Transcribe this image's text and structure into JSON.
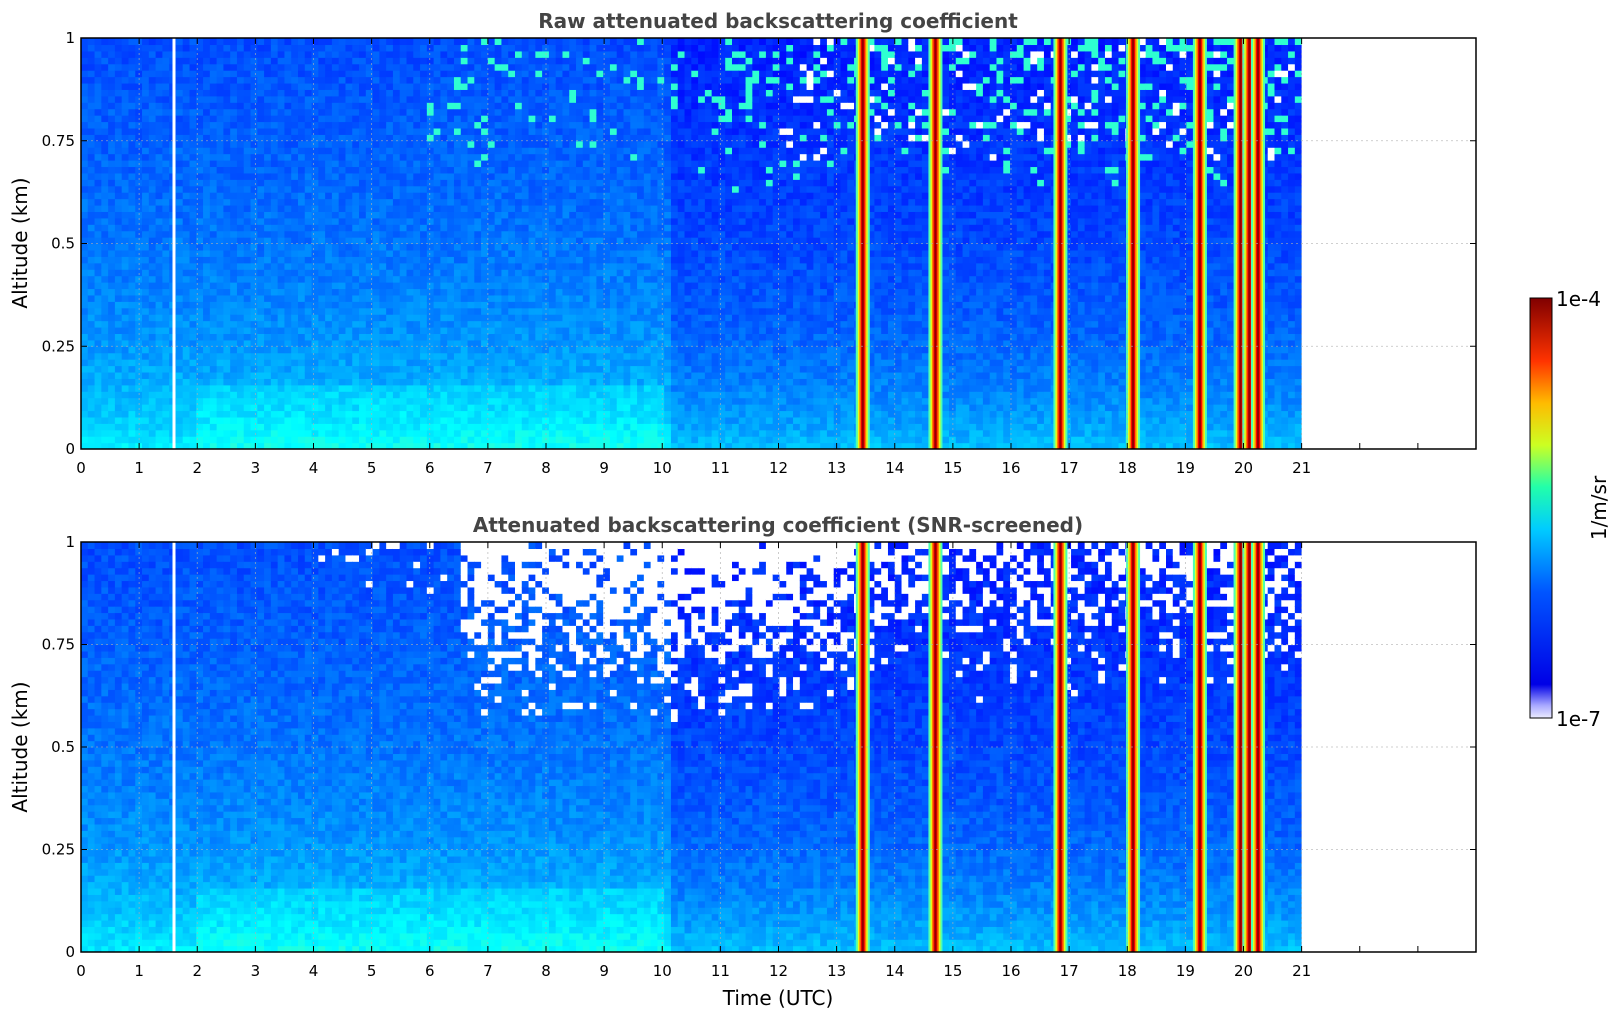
{
  "chart_data": [
    {
      "type": "heatmap",
      "title": "Raw attenuated backscattering coefficient",
      "xlabel": "",
      "ylabel": "Altitude (km)",
      "xlim": [
        0,
        24
      ],
      "ylim": [
        0,
        1
      ],
      "x_ticks": [
        "0",
        "1",
        "2",
        "3",
        "4",
        "5",
        "6",
        "7",
        "8",
        "9",
        "10",
        "11",
        "12",
        "13",
        "14",
        "15",
        "16",
        "17",
        "18",
        "19",
        "20",
        "21"
      ],
      "y_ticks": [
        "0",
        "0.25",
        "0.5",
        "0.75",
        "1"
      ],
      "grid": true,
      "data_end_hour": 21,
      "gap_hours": [
        1.6
      ],
      "screened": false,
      "cloud_hours": [
        13.45,
        14.7,
        16.85,
        18.1,
        19.25,
        19.95,
        20.1,
        20.25
      ]
    },
    {
      "type": "heatmap",
      "title": "Attenuated backscattering coefficient (SNR-screened)",
      "xlabel": "Time (UTC)",
      "ylabel": "Altitude (km)",
      "xlim": [
        0,
        24
      ],
      "ylim": [
        0,
        1
      ],
      "x_ticks": [
        "0",
        "1",
        "2",
        "3",
        "4",
        "5",
        "6",
        "7",
        "8",
        "9",
        "10",
        "11",
        "12",
        "13",
        "14",
        "15",
        "16",
        "17",
        "18",
        "19",
        "20",
        "21"
      ],
      "y_ticks": [
        "0",
        "0.25",
        "0.5",
        "0.75",
        "1"
      ],
      "grid": true,
      "data_end_hour": 21,
      "gap_hours": [
        1.6
      ],
      "screened": true,
      "cloud_hours": [
        13.45,
        14.7,
        16.85,
        18.1,
        19.25,
        19.95,
        20.1,
        20.25
      ]
    }
  ],
  "colorbar": {
    "label": "1/m/sr",
    "max_label": "1e-4",
    "min_label": "1e-7",
    "scale": "log",
    "colormap": "jet"
  }
}
